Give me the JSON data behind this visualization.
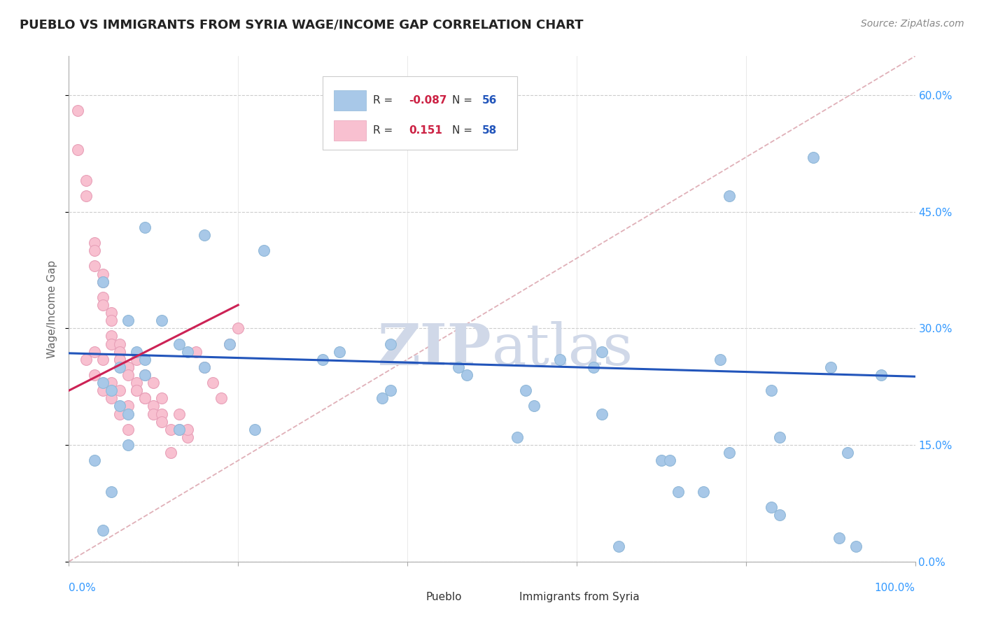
{
  "title": "PUEBLO VS IMMIGRANTS FROM SYRIA WAGE/INCOME GAP CORRELATION CHART",
  "source": "Source: ZipAtlas.com",
  "ylabel": "Wage/Income Gap",
  "xlim": [
    0.0,
    1.0
  ],
  "ylim": [
    0.0,
    0.65
  ],
  "ytick_vals": [
    0.0,
    0.15,
    0.3,
    0.45,
    0.6
  ],
  "ytick_labels": [
    "0.0%",
    "15.0%",
    "30.0%",
    "45.0%",
    "60.0%"
  ],
  "xtick_vals": [
    0.0,
    0.2,
    0.4,
    0.5,
    0.6,
    0.8,
    1.0
  ],
  "grid_color": "#cccccc",
  "background_color": "#ffffff",
  "pueblo_color": "#a8c8e8",
  "pueblo_edge_color": "#90b8d8",
  "syria_color": "#f8c0d0",
  "syria_edge_color": "#e8a0b8",
  "trend_blue_color": "#2255bb",
  "trend_pink_color": "#cc2255",
  "diagonal_color": "#e0b0b8",
  "legend_r_blue": "-0.087",
  "legend_n_blue": "56",
  "legend_r_pink": "0.151",
  "legend_n_pink": "58",
  "watermark_zip": "ZIP",
  "watermark_atlas": "atlas",
  "pueblo_x": [
    0.04,
    0.09,
    0.13,
    0.16,
    0.06,
    0.07,
    0.08,
    0.09,
    0.04,
    0.05,
    0.06,
    0.07,
    0.03,
    0.05,
    0.07,
    0.09,
    0.11,
    0.14,
    0.16,
    0.19,
    0.23,
    0.3,
    0.38,
    0.47,
    0.55,
    0.62,
    0.7,
    0.77,
    0.83,
    0.38,
    0.46,
    0.54,
    0.63,
    0.71,
    0.78,
    0.84,
    0.9,
    0.37,
    0.53,
    0.63,
    0.72,
    0.83,
    0.91,
    0.58,
    0.65,
    0.75,
    0.84,
    0.93,
    0.78,
    0.88,
    0.92,
    0.96,
    0.13,
    0.22,
    0.32,
    0.04
  ],
  "pueblo_y": [
    0.36,
    0.43,
    0.28,
    0.42,
    0.25,
    0.31,
    0.27,
    0.26,
    0.23,
    0.22,
    0.2,
    0.19,
    0.13,
    0.09,
    0.15,
    0.24,
    0.31,
    0.27,
    0.25,
    0.28,
    0.4,
    0.26,
    0.22,
    0.24,
    0.2,
    0.25,
    0.13,
    0.26,
    0.22,
    0.28,
    0.25,
    0.22,
    0.27,
    0.13,
    0.14,
    0.16,
    0.25,
    0.21,
    0.16,
    0.19,
    0.09,
    0.07,
    0.03,
    0.26,
    0.02,
    0.09,
    0.06,
    0.02,
    0.47,
    0.52,
    0.14,
    0.24,
    0.17,
    0.17,
    0.27,
    0.04
  ],
  "syria_x": [
    0.01,
    0.01,
    0.02,
    0.02,
    0.03,
    0.03,
    0.03,
    0.04,
    0.04,
    0.04,
    0.04,
    0.05,
    0.05,
    0.05,
    0.05,
    0.06,
    0.06,
    0.06,
    0.06,
    0.07,
    0.07,
    0.07,
    0.08,
    0.08,
    0.08,
    0.09,
    0.09,
    0.1,
    0.1,
    0.11,
    0.11,
    0.12,
    0.13,
    0.14,
    0.15,
    0.16,
    0.17,
    0.18,
    0.19,
    0.2,
    0.02,
    0.03,
    0.04,
    0.05,
    0.06,
    0.07,
    0.08,
    0.09,
    0.1,
    0.11,
    0.12,
    0.13,
    0.14,
    0.03,
    0.04,
    0.05,
    0.06,
    0.07
  ],
  "syria_y": [
    0.58,
    0.53,
    0.49,
    0.47,
    0.41,
    0.4,
    0.38,
    0.37,
    0.36,
    0.34,
    0.33,
    0.32,
    0.31,
    0.29,
    0.28,
    0.28,
    0.27,
    0.26,
    0.26,
    0.25,
    0.25,
    0.24,
    0.23,
    0.22,
    0.22,
    0.21,
    0.21,
    0.2,
    0.19,
    0.19,
    0.18,
    0.17,
    0.17,
    0.16,
    0.27,
    0.25,
    0.23,
    0.21,
    0.28,
    0.3,
    0.26,
    0.24,
    0.22,
    0.21,
    0.19,
    0.17,
    0.26,
    0.24,
    0.23,
    0.21,
    0.14,
    0.19,
    0.17,
    0.27,
    0.26,
    0.23,
    0.22,
    0.2
  ]
}
